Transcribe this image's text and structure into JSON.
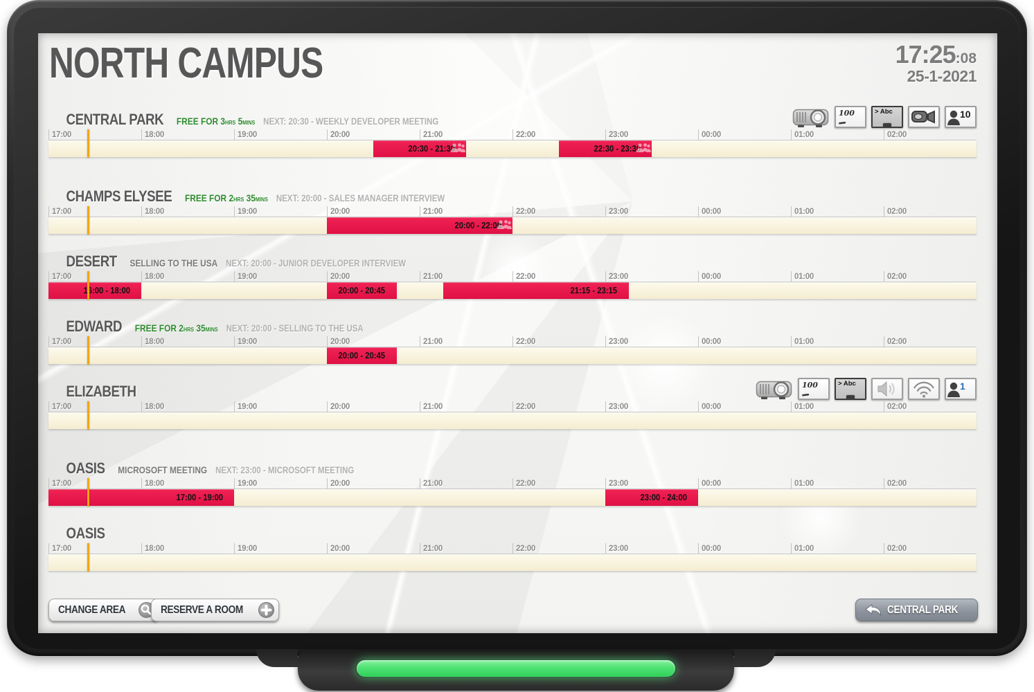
{
  "header": {
    "title": "NORTH CAMPUS",
    "clock_hm": "17:25",
    "clock_sec": ":08",
    "date": "25-1-2021"
  },
  "timeline": {
    "hour_labels": [
      "17:00",
      "18:00",
      "19:00",
      "20:00",
      "21:00",
      "22:00",
      "23:00",
      "00:00",
      "01:00",
      "02:00"
    ],
    "total_hours": 10,
    "current_time_pct": 4.1667
  },
  "rooms": [
    {
      "name": "CENTRAL PARK",
      "free": {
        "prefix": "FREE FOR 3",
        "unit1": "HRS",
        "mid": " 5",
        "unit2": "MINS"
      },
      "meeting": null,
      "next": "NEXT: 20:30 - WEEKLY DEVELOPER MEETING",
      "icons": [
        {
          "type": "projector"
        },
        {
          "type": "whiteboard",
          "label": "100"
        },
        {
          "type": "screen",
          "label": "> Abc"
        },
        {
          "type": "camera"
        },
        {
          "type": "capacity",
          "label": "10",
          "color": "#1b1b1b"
        }
      ],
      "bookings": [
        {
          "label": "20:30 - 21:30",
          "start": 3.5,
          "end": 4.5,
          "attendees": true
        },
        {
          "label": "22:30 - 23:30",
          "start": 5.5,
          "end": 6.5,
          "attendees": true
        }
      ]
    },
    {
      "name": "CHAMPS ELYSEE",
      "free": {
        "prefix": "FREE FOR 2",
        "unit1": "HRS",
        "mid": " 35",
        "unit2": "MINS"
      },
      "meeting": null,
      "next": "NEXT: 20:00 - SALES MANAGER INTERVIEW",
      "icons": [],
      "bookings": [
        {
          "label": "20:00 - 22:00",
          "start": 3,
          "end": 5,
          "attendees": true
        }
      ]
    },
    {
      "name": "DESERT",
      "free": null,
      "meeting": "SELLING TO THE USA",
      "next": "NEXT: 20:00 - JUNIOR DEVELOPER INTERVIEW",
      "icons": [],
      "bookings": [
        {
          "label": "16:00 - 18:00",
          "start": 0,
          "end": 1,
          "attendees": false
        },
        {
          "label": "20:00 - 20:45",
          "start": 3,
          "end": 3.75,
          "attendees": false
        },
        {
          "label": "21:15 - 23:15",
          "start": 4.25,
          "end": 6.25,
          "attendees": false
        }
      ]
    },
    {
      "name": "EDWARD",
      "free": {
        "prefix": "FREE FOR 2",
        "unit1": "HRS",
        "mid": " 35",
        "unit2": "MINS"
      },
      "meeting": null,
      "next": "NEXT: 20:00 - SELLING TO THE USA",
      "icons": [],
      "bookings": [
        {
          "label": "20:00 - 20:45",
          "start": 3,
          "end": 3.75,
          "attendees": false
        }
      ]
    },
    {
      "name": "ELIZABETH",
      "free": null,
      "meeting": null,
      "next": null,
      "icons": [
        {
          "type": "projector"
        },
        {
          "type": "whiteboard",
          "label": "100"
        },
        {
          "type": "screen",
          "label": "> Abc"
        },
        {
          "type": "speaker"
        },
        {
          "type": "wifi"
        },
        {
          "type": "capacity",
          "label": "1",
          "color": "#2b6fb8"
        }
      ],
      "bookings": []
    },
    {
      "name": "OASIS",
      "free": null,
      "meeting": "MICROSOFT MEETING",
      "next": "NEXT: 23:00 - MICROSOFT MEETING",
      "icons": [],
      "bookings": [
        {
          "label": "17:00 - 19:00",
          "start": 0,
          "end": 2,
          "attendees": false
        },
        {
          "label": "23:00 - 24:00",
          "start": 6,
          "end": 7,
          "attendees": false
        }
      ]
    },
    {
      "name": "OASIS",
      "free": null,
      "meeting": null,
      "next": null,
      "icons": [],
      "bookings": []
    }
  ],
  "footer": {
    "change_area_label": "CHANGE AREA",
    "reserve_label": "RESERVE A ROOM",
    "back_label": "CENTRAL PARK"
  },
  "colors": {
    "booking_red": "#e8154a",
    "track_cream": "#f8f2d9",
    "now_line": "#f2a703",
    "free_green": "#2e8b2e",
    "led_green": "#4fe273",
    "title_gray": "#575757"
  }
}
